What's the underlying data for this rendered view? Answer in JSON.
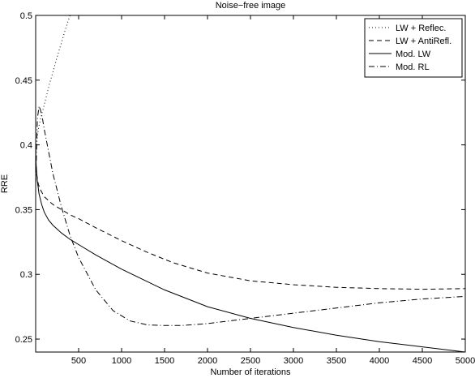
{
  "chart_data": {
    "type": "line",
    "title": "Noise−free image",
    "xlabel": "Number of iterations",
    "ylabel": "RRE",
    "xlim": [
      0,
      5000
    ],
    "ylim": [
      0.24,
      0.5
    ],
    "xticks": [
      500,
      1000,
      1500,
      2000,
      2500,
      3000,
      3500,
      4000,
      4500,
      5000
    ],
    "yticks": [
      0.25,
      0.3,
      0.35,
      0.4,
      0.45,
      0.5
    ],
    "ytick_labels": [
      "0.25",
      "0.3",
      "0.35",
      "0.4",
      "0.45",
      "0.5"
    ],
    "grid": false,
    "legend_position": "top-right",
    "series": [
      {
        "name": "LW + Reflec.",
        "style": "dotted",
        "x": [
          0,
          20,
          40,
          60,
          80,
          100,
          130,
          160,
          200,
          250,
          300,
          350,
          400
        ],
        "y": [
          0.39,
          0.407,
          0.415,
          0.421,
          0.426,
          0.431,
          0.439,
          0.447,
          0.456,
          0.468,
          0.479,
          0.49,
          0.5
        ]
      },
      {
        "name": "LW + AntiRefl.",
        "style": "dashed",
        "x": [
          0,
          10,
          30,
          50,
          100,
          150,
          200,
          300,
          400,
          500,
          700,
          1000,
          1300,
          1600,
          2000,
          2500,
          3000,
          3500,
          4000,
          4500,
          5000
        ],
        "y": [
          0.39,
          0.378,
          0.37,
          0.366,
          0.36,
          0.357,
          0.354,
          0.35,
          0.346,
          0.343,
          0.336,
          0.326,
          0.317,
          0.309,
          0.301,
          0.295,
          0.292,
          0.29,
          0.289,
          0.2885,
          0.289
        ]
      },
      {
        "name": "Mod. LW",
        "style": "solid",
        "x": [
          0,
          10,
          20,
          40,
          70,
          100,
          150,
          200,
          300,
          400,
          500,
          700,
          1000,
          1500,
          2000,
          2500,
          3000,
          3500,
          4000,
          4500,
          5000
        ],
        "y": [
          0.39,
          0.38,
          0.372,
          0.362,
          0.354,
          0.348,
          0.342,
          0.338,
          0.332,
          0.327,
          0.323,
          0.315,
          0.304,
          0.288,
          0.275,
          0.266,
          0.259,
          0.253,
          0.248,
          0.244,
          0.24
        ]
      },
      {
        "name": "Mod. RL",
        "style": "dashdot",
        "x": [
          0,
          20,
          40,
          60,
          80,
          100,
          150,
          200,
          300,
          400,
          500,
          700,
          900,
          1100,
          1300,
          1500,
          1700,
          2000,
          2500,
          3000,
          3500,
          4000,
          4500,
          5000
        ],
        "y": [
          0.37,
          0.42,
          0.43,
          0.426,
          0.42,
          0.412,
          0.395,
          0.378,
          0.352,
          0.33,
          0.313,
          0.288,
          0.272,
          0.264,
          0.261,
          0.2605,
          0.2605,
          0.262,
          0.266,
          0.27,
          0.274,
          0.278,
          0.281,
          0.283
        ]
      }
    ]
  }
}
